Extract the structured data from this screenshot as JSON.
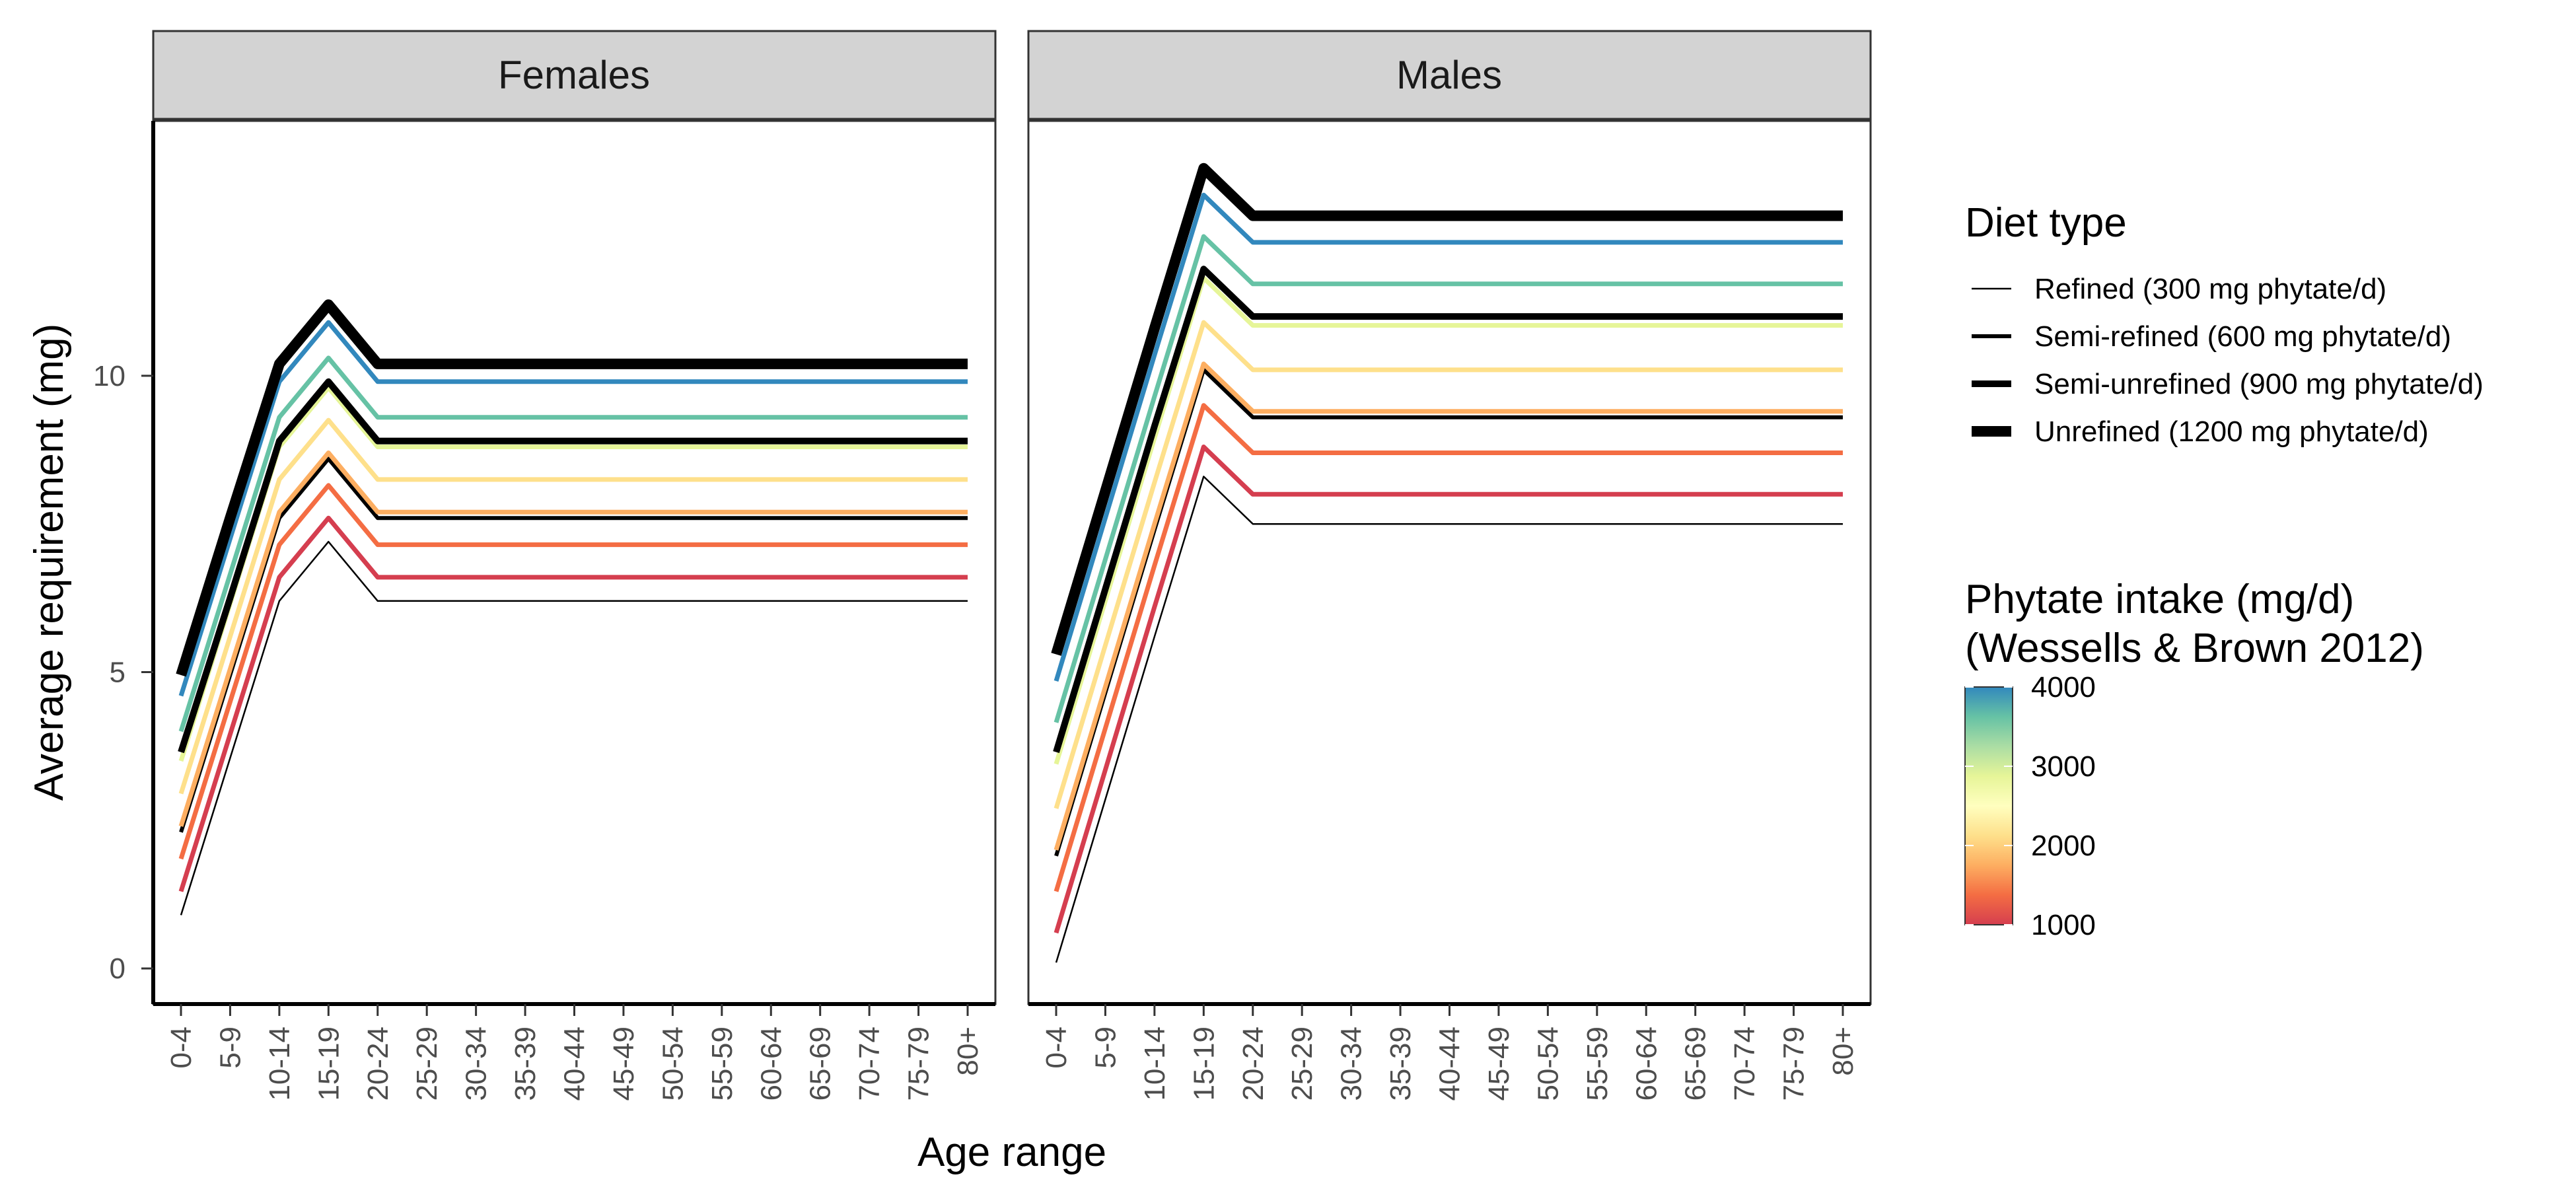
{
  "chart_data": {
    "type": "line",
    "ylabel": "Average requirement (mg)",
    "xlabel": "Age range",
    "categories": [
      "0-4",
      "5-9",
      "10-14",
      "15-19",
      "20-24",
      "25-29",
      "30-34",
      "35-39",
      "40-44",
      "45-49",
      "50-54",
      "55-59",
      "60-64",
      "65-69",
      "70-74",
      "75-79",
      "80+"
    ],
    "ylim": [
      -0.6,
      14.3
    ],
    "yticks": [
      0,
      5,
      10
    ],
    "grid": false,
    "facets": [
      "Females",
      "Males"
    ],
    "legend_diet": {
      "title": "Diet type",
      "items": [
        {
          "label": "Refined (300 mg phytate/d)",
          "width": 1
        },
        {
          "label": "Semi-refined (600 mg phytate/d)",
          "width": 2
        },
        {
          "label": "Semi-unrefined (900 mg phytate/d)",
          "width": 3
        },
        {
          "label": "Unrefined (1200 mg phytate/d)",
          "width": 4
        }
      ]
    },
    "legend_phytate": {
      "title_line1": "Phytate intake (mg/d)",
      "title_line2": "(Wessells & Brown 2012)",
      "ticks": [
        "1000",
        "2000",
        "3000",
        "4000"
      ],
      "tick_values": [
        1000,
        2000,
        3000,
        4000
      ],
      "range": [
        1000,
        4000
      ],
      "gradient": [
        "#D53E4F",
        "#F46D43",
        "#FDAE61",
        "#FEE08B",
        "#FFFFBF",
        "#E6F598",
        "#ABDDA4",
        "#66C2A5",
        "#3288BD"
      ]
    },
    "series": [
      {
        "facet": "Females",
        "diet": "Refined (300 mg phytate/d)",
        "width": 1,
        "color": "#000000",
        "values": [
          0.9,
          3.55,
          6.2,
          7.2,
          6.2,
          6.2,
          6.2,
          6.2,
          6.2,
          6.2,
          6.2,
          6.2,
          6.2,
          6.2,
          6.2,
          6.2,
          6.2
        ]
      },
      {
        "facet": "Females",
        "phytate": 1000,
        "color": "#D53E4F",
        "values": [
          1.3,
          3.95,
          6.6,
          7.6,
          6.6,
          6.6,
          6.6,
          6.6,
          6.6,
          6.6,
          6.6,
          6.6,
          6.6,
          6.6,
          6.6,
          6.6,
          6.6
        ]
      },
      {
        "facet": "Females",
        "phytate": 1500,
        "color": "#F46D43",
        "values": [
          1.85,
          4.5,
          7.15,
          8.15,
          7.15,
          7.15,
          7.15,
          7.15,
          7.15,
          7.15,
          7.15,
          7.15,
          7.15,
          7.15,
          7.15,
          7.15,
          7.15
        ]
      },
      {
        "facet": "Females",
        "diet": "Semi-refined (600 mg phytate/d)",
        "width": 2,
        "color": "#000000",
        "values": [
          2.3,
          4.95,
          7.6,
          8.6,
          7.6,
          7.6,
          7.6,
          7.6,
          7.6,
          7.6,
          7.6,
          7.6,
          7.6,
          7.6,
          7.6,
          7.6,
          7.6
        ]
      },
      {
        "facet": "Females",
        "phytate": 2000,
        "color": "#FDAE61",
        "values": [
          2.4,
          5.05,
          7.7,
          8.7,
          7.7,
          7.7,
          7.7,
          7.7,
          7.7,
          7.7,
          7.7,
          7.7,
          7.7,
          7.7,
          7.7,
          7.7,
          7.7
        ]
      },
      {
        "facet": "Females",
        "phytate": 2500,
        "color": "#FEE08B",
        "values": [
          2.95,
          5.6,
          8.25,
          9.25,
          8.25,
          8.25,
          8.25,
          8.25,
          8.25,
          8.25,
          8.25,
          8.25,
          8.25,
          8.25,
          8.25,
          8.25,
          8.25
        ]
      },
      {
        "facet": "Females",
        "phytate": 3000,
        "color": "#E6F598",
        "values": [
          3.5,
          6.15,
          8.8,
          9.8,
          8.8,
          8.8,
          8.8,
          8.8,
          8.8,
          8.8,
          8.8,
          8.8,
          8.8,
          8.8,
          8.8,
          8.8,
          8.8
        ]
      },
      {
        "facet": "Females",
        "diet": "Semi-unrefined (900 mg phytate/d)",
        "width": 3,
        "color": "#000000",
        "values": [
          3.65,
          6.25,
          8.9,
          9.9,
          8.9,
          8.9,
          8.9,
          8.9,
          8.9,
          8.9,
          8.9,
          8.9,
          8.9,
          8.9,
          8.9,
          8.9,
          8.9
        ]
      },
      {
        "facet": "Females",
        "phytate": 3500,
        "color": "#66C2A5",
        "values": [
          4.0,
          6.65,
          9.3,
          10.3,
          9.3,
          9.3,
          9.3,
          9.3,
          9.3,
          9.3,
          9.3,
          9.3,
          9.3,
          9.3,
          9.3,
          9.3,
          9.3
        ]
      },
      {
        "facet": "Females",
        "phytate": 4000,
        "color": "#3288BD",
        "values": [
          4.6,
          7.25,
          9.9,
          10.9,
          9.9,
          9.9,
          9.9,
          9.9,
          9.9,
          9.9,
          9.9,
          9.9,
          9.9,
          9.9,
          9.9,
          9.9,
          9.9
        ]
      },
      {
        "facet": "Females",
        "diet": "Unrefined (1200 mg phytate/d)",
        "width": 4,
        "color": "#000000",
        "values": [
          4.95,
          7.6,
          10.2,
          11.2,
          10.2,
          10.2,
          10.2,
          10.2,
          10.2,
          10.2,
          10.2,
          10.2,
          10.2,
          10.2,
          10.2,
          10.2,
          10.2
        ]
      },
      {
        "facet": "Males",
        "diet": "Refined (300 mg phytate/d)",
        "width": 1,
        "color": "#000000",
        "values": [
          0.1,
          2.85,
          5.6,
          8.3,
          7.5,
          7.5,
          7.5,
          7.5,
          7.5,
          7.5,
          7.5,
          7.5,
          7.5,
          7.5,
          7.5,
          7.5,
          7.5
        ]
      },
      {
        "facet": "Males",
        "phytate": 1000,
        "color": "#D53E4F",
        "values": [
          0.6,
          3.35,
          6.1,
          8.8,
          8.0,
          8.0,
          8.0,
          8.0,
          8.0,
          8.0,
          8.0,
          8.0,
          8.0,
          8.0,
          8.0,
          8.0,
          8.0
        ]
      },
      {
        "facet": "Males",
        "phytate": 1500,
        "color": "#F46D43",
        "values": [
          1.3,
          4.05,
          6.8,
          9.5,
          8.7,
          8.7,
          8.7,
          8.7,
          8.7,
          8.7,
          8.7,
          8.7,
          8.7,
          8.7,
          8.7,
          8.7,
          8.7
        ]
      },
      {
        "facet": "Males",
        "diet": "Semi-refined (600 mg phytate/d)",
        "width": 2,
        "color": "#000000",
        "values": [
          1.9,
          4.65,
          7.4,
          10.1,
          9.3,
          9.3,
          9.3,
          9.3,
          9.3,
          9.3,
          9.3,
          9.3,
          9.3,
          9.3,
          9.3,
          9.3,
          9.3
        ]
      },
      {
        "facet": "Males",
        "phytate": 2000,
        "color": "#FDAE61",
        "values": [
          2.0,
          4.75,
          7.5,
          10.2,
          9.4,
          9.4,
          9.4,
          9.4,
          9.4,
          9.4,
          9.4,
          9.4,
          9.4,
          9.4,
          9.4,
          9.4,
          9.4
        ]
      },
      {
        "facet": "Males",
        "phytate": 2500,
        "color": "#FEE08B",
        "values": [
          2.7,
          5.45,
          8.2,
          10.9,
          10.1,
          10.1,
          10.1,
          10.1,
          10.1,
          10.1,
          10.1,
          10.1,
          10.1,
          10.1,
          10.1,
          10.1,
          10.1
        ]
      },
      {
        "facet": "Males",
        "phytate": 3000,
        "color": "#E6F598",
        "values": [
          3.45,
          6.2,
          8.95,
          11.65,
          10.85,
          10.85,
          10.85,
          10.85,
          10.85,
          10.85,
          10.85,
          10.85,
          10.85,
          10.85,
          10.85,
          10.85,
          10.85
        ]
      },
      {
        "facet": "Males",
        "diet": "Semi-unrefined (900 mg phytate/d)",
        "width": 3,
        "color": "#000000",
        "values": [
          3.65,
          6.4,
          9.15,
          11.8,
          11.0,
          11.0,
          11.0,
          11.0,
          11.0,
          11.0,
          11.0,
          11.0,
          11.0,
          11.0,
          11.0,
          11.0,
          11.0
        ]
      },
      {
        "facet": "Males",
        "phytate": 3500,
        "color": "#66C2A5",
        "values": [
          4.15,
          6.9,
          9.65,
          12.35,
          11.55,
          11.55,
          11.55,
          11.55,
          11.55,
          11.55,
          11.55,
          11.55,
          11.55,
          11.55,
          11.55,
          11.55,
          11.55
        ]
      },
      {
        "facet": "Males",
        "phytate": 4000,
        "color": "#3288BD",
        "values": [
          4.85,
          7.6,
          10.35,
          13.05,
          12.25,
          12.25,
          12.25,
          12.25,
          12.25,
          12.25,
          12.25,
          12.25,
          12.25,
          12.25,
          12.25,
          12.25,
          12.25
        ]
      },
      {
        "facet": "Males",
        "diet": "Unrefined (1200 mg phytate/d)",
        "width": 4,
        "color": "#000000",
        "values": [
          5.3,
          8.05,
          10.8,
          13.5,
          12.7,
          12.7,
          12.7,
          12.7,
          12.7,
          12.7,
          12.7,
          12.7,
          12.7,
          12.7,
          12.7,
          12.7,
          12.7
        ]
      }
    ]
  }
}
